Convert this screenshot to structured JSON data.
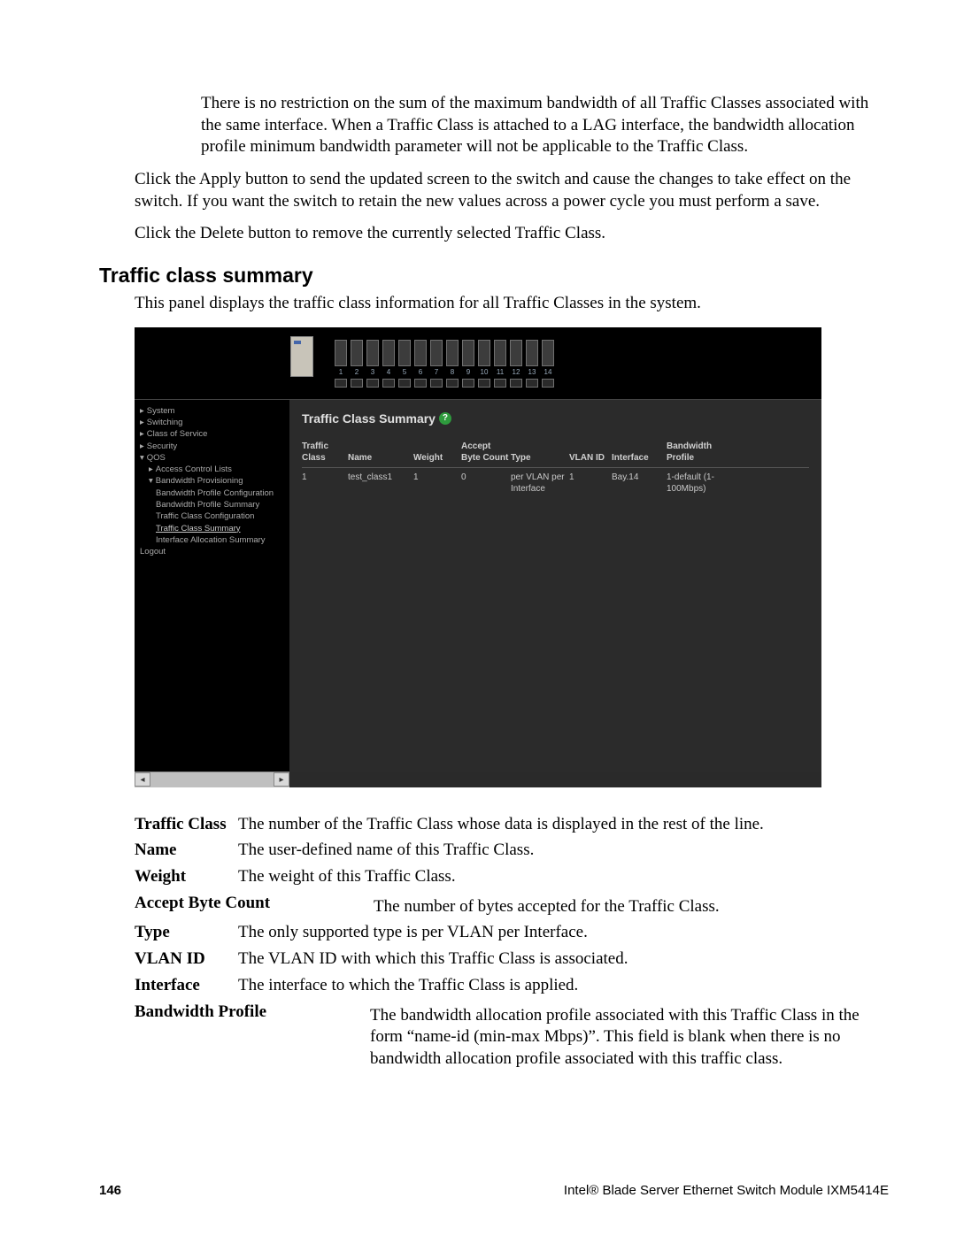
{
  "paragraphs": {
    "p1": "There is no restriction on the sum of the maximum bandwidth of all Traffic Classes associated with the same interface. When a Traffic Class is attached to a LAG interface, the bandwidth allocation profile minimum bandwidth parameter will not be applicable to the Traffic Class.",
    "p2": "Click the Apply button to send the updated screen to the switch and cause the changes to take effect on the switch. If you want the switch to retain the new values across a power cycle you must perform a save.",
    "p3": "Click the Delete button to remove the currently selected Traffic Class."
  },
  "section": {
    "heading": "Traffic class summary",
    "intro": "This panel displays the traffic class information for all Traffic Classes in the system."
  },
  "screenshot": {
    "slot_numbers": [
      "1",
      "2",
      "3",
      "4",
      "5",
      "6",
      "7",
      "8",
      "9",
      "10",
      "11",
      "12",
      "13",
      "14"
    ],
    "sidebar": {
      "items": [
        {
          "label": "System",
          "marker": "▸",
          "cls": "nav-item"
        },
        {
          "label": "Switching",
          "marker": "▸",
          "cls": "nav-item"
        },
        {
          "label": "Class of Service",
          "marker": "▸",
          "cls": "nav-item"
        },
        {
          "label": "Security",
          "marker": "▸",
          "cls": "nav-item"
        },
        {
          "label": "QOS",
          "marker": "▾",
          "cls": "nav-item"
        },
        {
          "label": "Access Control Lists",
          "marker": "▸",
          "cls": "nav-sub"
        },
        {
          "label": "Bandwidth Provisioning",
          "marker": "▾",
          "cls": "nav-sub"
        },
        {
          "label": "Bandwidth Profile Configuration",
          "marker": "",
          "cls": "nav-sub2"
        },
        {
          "label": "Bandwidth Profile Summary",
          "marker": "",
          "cls": "nav-sub2"
        },
        {
          "label": "Traffic Class Configuration",
          "marker": "",
          "cls": "nav-sub2"
        },
        {
          "label": "Traffic Class Summary",
          "marker": "",
          "cls": "nav-sub2 nav-active"
        },
        {
          "label": "Interface Allocation Summary",
          "marker": "",
          "cls": "nav-sub2"
        },
        {
          "label": "Logout",
          "marker": "",
          "cls": "nav-item"
        }
      ]
    },
    "title": "Traffic Class Summary",
    "help": "?",
    "table": {
      "headers": {
        "tc": "Traffic Class",
        "name": "Name",
        "weight": "Weight",
        "abc": "Accept Byte Count",
        "type": "Type",
        "vlan": "VLAN ID",
        "iface": "Interface",
        "bw": "Bandwidth Profile"
      },
      "row": {
        "tc": "1",
        "name": "test_class1",
        "weight": "1",
        "abc": "0",
        "type": "per VLAN per Interface",
        "vlan": "1",
        "iface": "Bay.14",
        "bw": "1-default (1-100Mbps)"
      }
    },
    "scroll": {
      "left": "◂",
      "right": "▸"
    }
  },
  "definitions": [
    {
      "term": "Traffic Class",
      "desc": "The number of the Traffic Class whose data is displayed in the rest of the line.",
      "wide": false
    },
    {
      "term": "Name",
      "desc": "The user-defined name of this Traffic Class.",
      "wide": false
    },
    {
      "term": "Weight",
      "desc": "The weight of this Traffic Class.",
      "wide": false
    },
    {
      "term": "Accept Byte Count",
      "desc": "The number of bytes accepted for the Traffic Class.",
      "wide": true
    },
    {
      "term": "Type",
      "desc": "The only supported type is per VLAN per Interface.",
      "wide": false
    },
    {
      "term": "VLAN ID",
      "desc": "The VLAN ID with which this Traffic Class is associated.",
      "wide": false
    },
    {
      "term": "Interface",
      "desc": "The interface to which the Traffic Class is applied.",
      "wide": false
    },
    {
      "term": "Bandwidth Profile",
      "desc": "The bandwidth allocation profile associated with this Traffic Class in the form “name-id (min-max Mbps)”. This field is blank when there is no bandwidth allocation profile associated with this traffic class.",
      "wide": true
    }
  ],
  "footer": {
    "page": "146",
    "title": "Intel® Blade Server Ethernet Switch Module IXM5414E"
  }
}
